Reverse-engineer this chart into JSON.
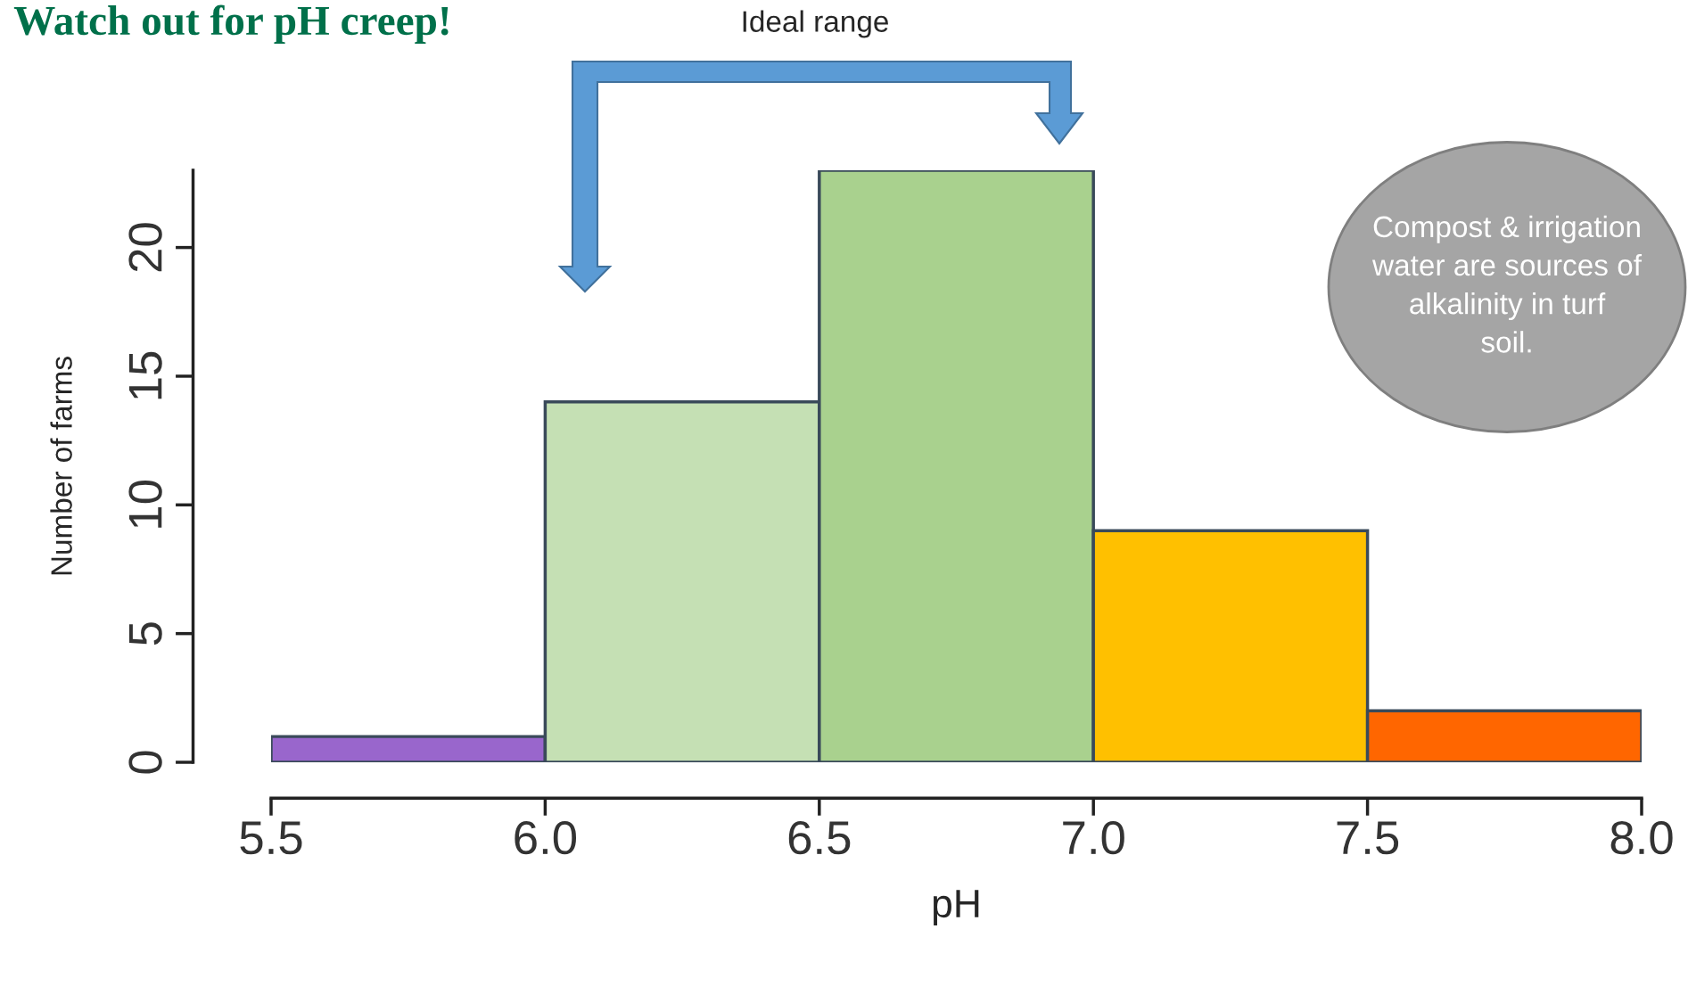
{
  "chart_data": {
    "type": "histogram",
    "title": "Watch out for pH creep!",
    "xlabel": "pH",
    "ylabel": "Number of farms",
    "bins": [
      5.5,
      6.0,
      6.5,
      7.0,
      7.5,
      8.0
    ],
    "values": [
      1,
      14,
      23,
      9,
      2
    ],
    "colors": [
      "#9966cc",
      "#c5e0b4",
      "#a9d18e",
      "#ffc000",
      "#ff6600"
    ],
    "xlim": [
      5.5,
      8.0
    ],
    "xticks": [
      5.5,
      {
        "value": 6,
        "label": "6.0"
      },
      6.5,
      {
        "value": 7,
        "label": "7.0"
      },
      7.5,
      {
        "value": 8,
        "label": "8.0"
      }
    ],
    "ylim": [
      0,
      23
    ],
    "yticks": [
      0,
      5,
      10,
      15,
      20
    ],
    "grid": false,
    "annotations": [
      "Ideal range",
      "Compost & irrigation\nwater are sources of\nalkalinity in turf\nsoil."
    ]
  }
}
